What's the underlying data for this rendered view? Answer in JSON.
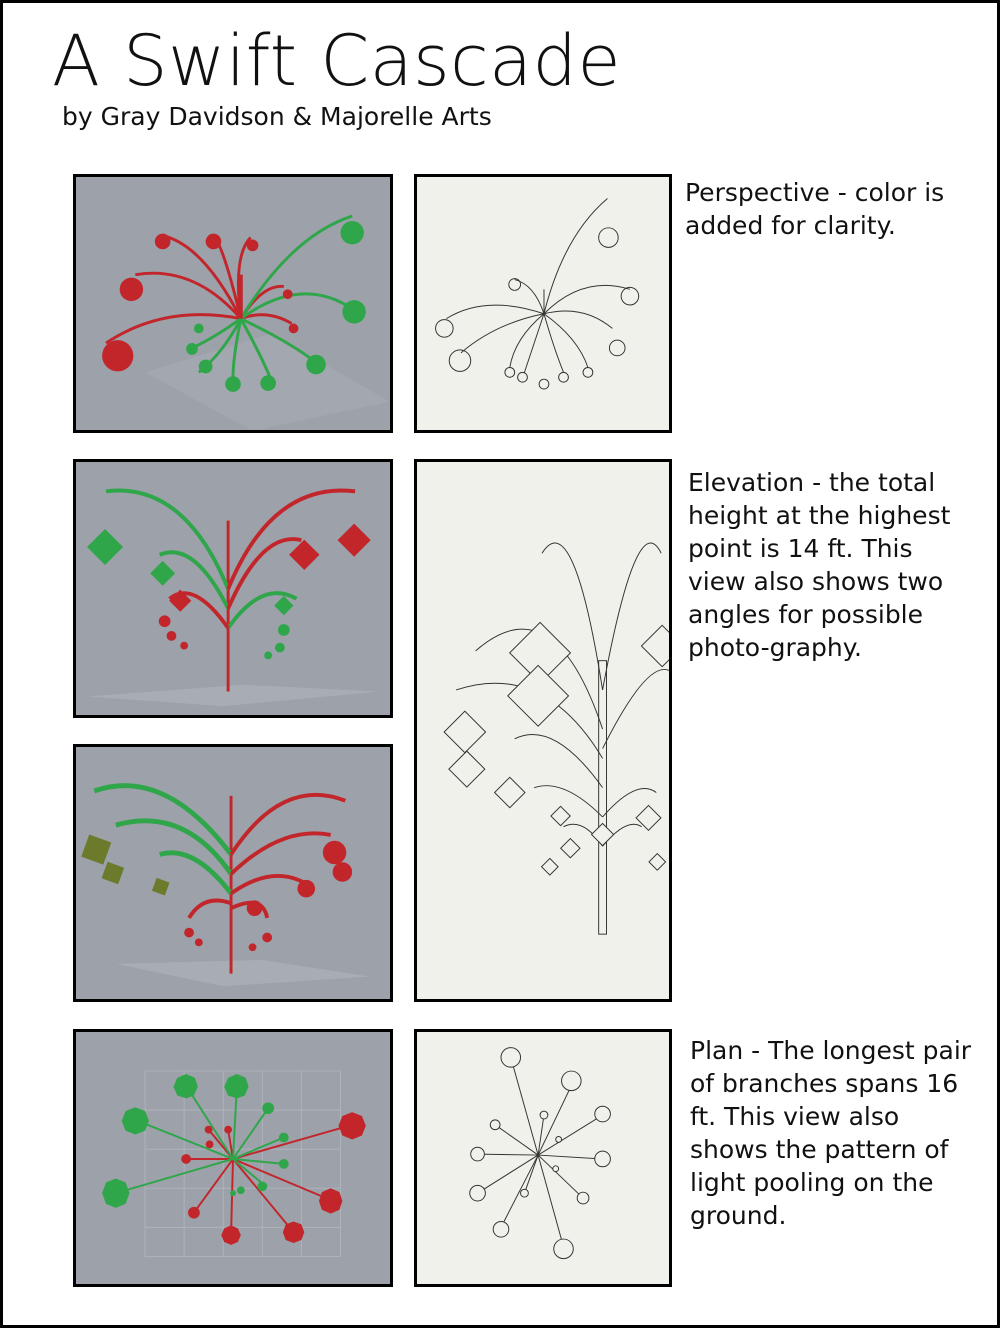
{
  "header": {
    "title": "A Swift Cascade",
    "byline": "by Gray Davidson & Majorelle Arts"
  },
  "sections": {
    "perspective": {
      "description": "Perspective - color is added for clarity."
    },
    "elevation": {
      "description": "Elevation - the total height at the highest point is 14 ft. This view also shows two angles for possible photo-graphy."
    },
    "plan": {
      "description": "Plan - The longest pair of branches spans 16 ft.  This view also shows the pattern of light pooling on the ground."
    }
  },
  "colors": {
    "render_background": "#9ca1aa",
    "paper_background": "#f1f1ec",
    "red_element": "#c2262b",
    "green_element": "#2fa64a"
  }
}
